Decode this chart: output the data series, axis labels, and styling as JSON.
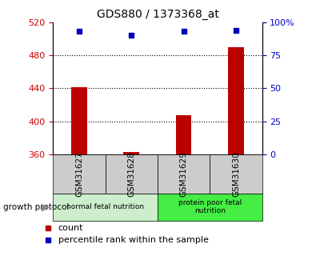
{
  "title": "GDS880 / 1373368_at",
  "samples": [
    "GSM31627",
    "GSM31628",
    "GSM31629",
    "GSM31630"
  ],
  "counts": [
    441,
    363,
    408,
    490
  ],
  "percentiles": [
    93,
    90,
    93,
    94
  ],
  "left_ylim": [
    360,
    520
  ],
  "left_yticks": [
    360,
    400,
    440,
    480,
    520
  ],
  "right_ylim": [
    0,
    100
  ],
  "right_yticks": [
    0,
    25,
    50,
    75,
    100
  ],
  "bar_color": "#bb0000",
  "dot_color": "#0000bb",
  "groups": [
    {
      "label": "normal fetal nutrition",
      "indices": [
        0,
        1
      ],
      "color": "#cceecc"
    },
    {
      "label": "protein poor fetal\nnutrition",
      "indices": [
        2,
        3
      ],
      "color": "#44ee44"
    }
  ],
  "growth_protocol_label": "growth protocol",
  "legend_count_label": "count",
  "legend_percentile_label": "percentile rank within the sample",
  "sample_box_color": "#cccccc",
  "left_tick_color": "#cc0000",
  "right_tick_color": "#0000cc",
  "grid_yticks": [
    400,
    440,
    480
  ]
}
